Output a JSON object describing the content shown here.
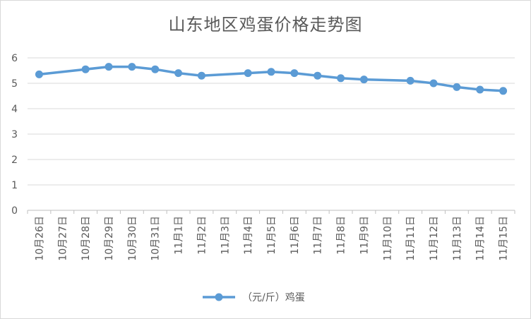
{
  "chart_data": {
    "type": "line",
    "title": "山东地区鸡蛋价格走势图",
    "categories": [
      "10月26日",
      "10月27日",
      "10月28日",
      "10月29日",
      "10月30日",
      "10月31日",
      "11月1日",
      "11月2日",
      "11月3日",
      "11月4日",
      "11月5日",
      "11月6日",
      "11月7日",
      "11月8日",
      "11月9日",
      "11月10日",
      "11月11日",
      "11月12日",
      "11月13日",
      "11月14日",
      "11月15日"
    ],
    "series": [
      {
        "name": "（元/斤）鸡蛋",
        "values": [
          5.35,
          null,
          5.55,
          5.65,
          5.65,
          5.55,
          5.4,
          5.3,
          null,
          5.4,
          5.45,
          5.4,
          5.3,
          5.2,
          5.15,
          null,
          5.1,
          5.0,
          4.85,
          4.75,
          4.7
        ],
        "color": "#5b9bd5"
      }
    ],
    "ylim": [
      0,
      6
    ],
    "yticks": [
      "0",
      "1",
      "2",
      "3",
      "4",
      "5",
      "6"
    ],
    "grid": true,
    "legend": "bottom",
    "xlabel": "",
    "ylabel": ""
  }
}
